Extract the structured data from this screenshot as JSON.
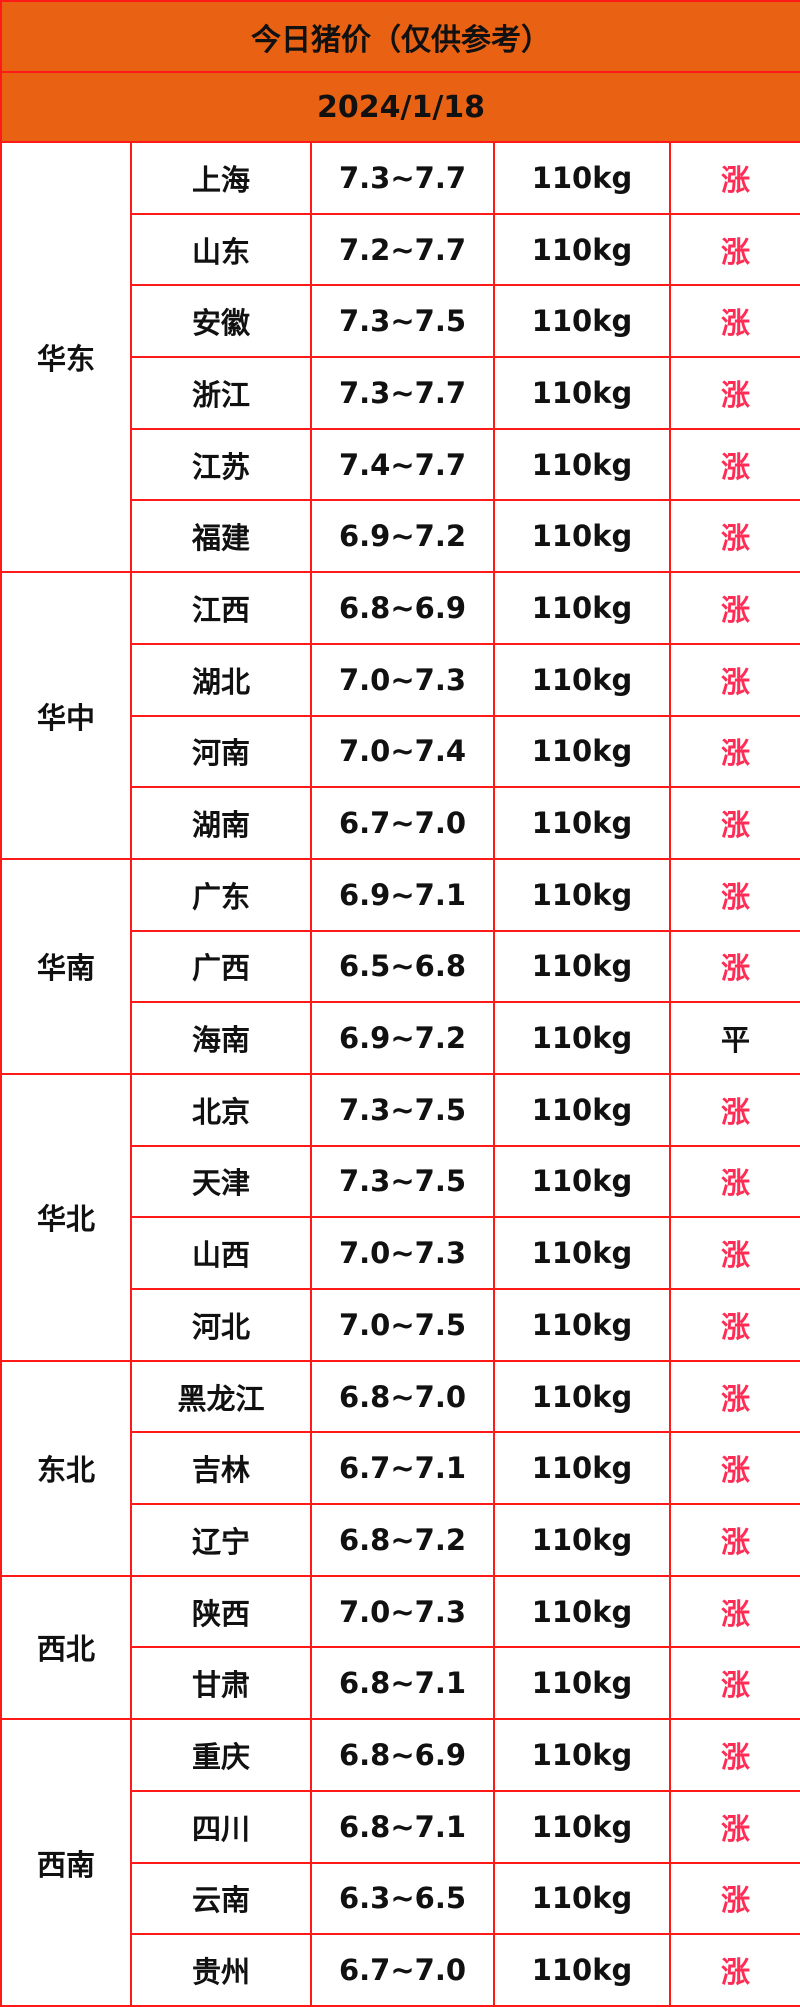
{
  "title": "今日猪价（仅供参考）",
  "date": "2024/1/18",
  "colors": {
    "header_bg": "#e96214",
    "border": "#ff1a1a",
    "rise": "#ff2d55",
    "flat": "#111111"
  },
  "regions": [
    {
      "name": "华东",
      "rows": [
        {
          "province": "上海",
          "price": "7.3~7.7",
          "weight": "110kg",
          "trend": "涨"
        },
        {
          "province": "山东",
          "price": "7.2~7.7",
          "weight": "110kg",
          "trend": "涨"
        },
        {
          "province": "安徽",
          "price": "7.3~7.5",
          "weight": "110kg",
          "trend": "涨"
        },
        {
          "province": "浙江",
          "price": "7.3~7.7",
          "weight": "110kg",
          "trend": "涨"
        },
        {
          "province": "江苏",
          "price": "7.4~7.7",
          "weight": "110kg",
          "trend": "涨"
        },
        {
          "province": "福建",
          "price": "6.9~7.2",
          "weight": "110kg",
          "trend": "涨"
        }
      ]
    },
    {
      "name": "华中",
      "rows": [
        {
          "province": "江西",
          "price": "6.8~6.9",
          "weight": "110kg",
          "trend": "涨"
        },
        {
          "province": "湖北",
          "price": "7.0~7.3",
          "weight": "110kg",
          "trend": "涨"
        },
        {
          "province": "河南",
          "price": "7.0~7.4",
          "weight": "110kg",
          "trend": "涨"
        },
        {
          "province": "湖南",
          "price": "6.7~7.0",
          "weight": "110kg",
          "trend": "涨"
        }
      ]
    },
    {
      "name": "华南",
      "rows": [
        {
          "province": "广东",
          "price": "6.9~7.1",
          "weight": "110kg",
          "trend": "涨"
        },
        {
          "province": "广西",
          "price": "6.5~6.8",
          "weight": "110kg",
          "trend": "涨"
        },
        {
          "province": "海南",
          "price": "6.9~7.2",
          "weight": "110kg",
          "trend": "平"
        }
      ]
    },
    {
      "name": "华北",
      "rows": [
        {
          "province": "北京",
          "price": "7.3~7.5",
          "weight": "110kg",
          "trend": "涨"
        },
        {
          "province": "天津",
          "price": "7.3~7.5",
          "weight": "110kg",
          "trend": "涨"
        },
        {
          "province": "山西",
          "price": "7.0~7.3",
          "weight": "110kg",
          "trend": "涨"
        },
        {
          "province": "河北",
          "price": "7.0~7.5",
          "weight": "110kg",
          "trend": "涨"
        }
      ]
    },
    {
      "name": "东北",
      "rows": [
        {
          "province": "黑龙江",
          "price": "6.8~7.0",
          "weight": "110kg",
          "trend": "涨"
        },
        {
          "province": "吉林",
          "price": "6.7~7.1",
          "weight": "110kg",
          "trend": "涨"
        },
        {
          "province": "辽宁",
          "price": "6.8~7.2",
          "weight": "110kg",
          "trend": "涨"
        }
      ]
    },
    {
      "name": "西北",
      "rows": [
        {
          "province": "陕西",
          "price": "7.0~7.3",
          "weight": "110kg",
          "trend": "涨"
        },
        {
          "province": "甘肃",
          "price": "6.8~7.1",
          "weight": "110kg",
          "trend": "涨"
        }
      ]
    },
    {
      "name": "西南",
      "rows": [
        {
          "province": "重庆",
          "price": "6.8~6.9",
          "weight": "110kg",
          "trend": "涨"
        },
        {
          "province": "四川",
          "price": "6.8~7.1",
          "weight": "110kg",
          "trend": "涨"
        },
        {
          "province": "云南",
          "price": "6.3~6.5",
          "weight": "110kg",
          "trend": "涨"
        },
        {
          "province": "贵州",
          "price": "6.7~7.0",
          "weight": "110kg",
          "trend": "涨"
        }
      ]
    }
  ]
}
